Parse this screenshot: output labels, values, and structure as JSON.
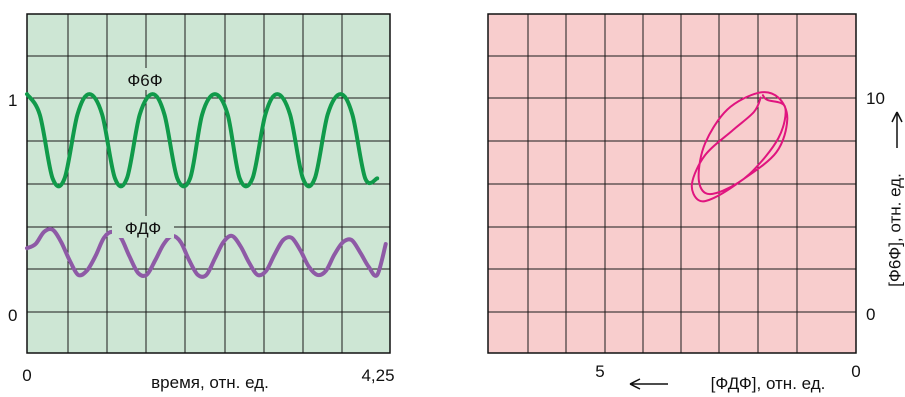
{
  "chart_data": [
    {
      "type": "line",
      "xlabel": "время, отн. ед.",
      "ylabel": "",
      "xlim": [
        0,
        4.25
      ],
      "ylim": [
        -0.3,
        1.35
      ],
      "x_ticks": [
        "0",
        "4,25"
      ],
      "y_ticks": [
        "0",
        "1"
      ],
      "grid": true,
      "background": "#cde6d4",
      "series": [
        {
          "name": "Ф6Ф",
          "color": "#109a4a",
          "x": [
            0.0,
            0.15,
            0.3,
            0.44,
            0.59,
            0.73,
            0.88,
            1.03,
            1.17,
            1.32,
            1.47,
            1.61,
            1.76,
            1.91,
            2.05,
            2.2,
            2.35,
            2.49,
            2.64,
            2.79,
            2.93,
            3.08,
            3.23,
            3.37,
            3.52,
            3.67,
            3.81,
            3.96,
            4.1
          ],
          "values": [
            0.96,
            0.86,
            0.55,
            0.55,
            0.86,
            0.96,
            0.86,
            0.55,
            0.55,
            0.86,
            0.96,
            0.86,
            0.55,
            0.55,
            0.86,
            0.96,
            0.86,
            0.55,
            0.55,
            0.86,
            0.96,
            0.86,
            0.55,
            0.55,
            0.86,
            0.96,
            0.86,
            0.55,
            0.55
          ]
        },
        {
          "name": "ФДФ",
          "color": "#8e5aa6",
          "x": [
            0.0,
            0.1,
            0.2,
            0.3,
            0.4,
            0.5,
            0.6,
            0.7,
            0.8,
            0.9,
            1.0,
            1.1,
            1.2,
            1.3,
            1.4,
            1.5,
            1.6,
            1.7,
            1.8,
            1.9,
            2.0,
            2.1,
            2.2,
            2.3,
            2.4,
            2.5,
            2.6,
            2.7,
            2.8,
            2.9,
            3.0,
            3.1,
            3.2,
            3.3,
            3.4,
            3.5,
            3.6,
            3.7,
            3.8,
            3.9,
            4.0,
            4.1,
            4.2
          ],
          "values": [
            0.21,
            0.23,
            0.29,
            0.3,
            0.24,
            0.15,
            0.08,
            0.1,
            0.17,
            0.26,
            0.29,
            0.26,
            0.17,
            0.09,
            0.08,
            0.15,
            0.23,
            0.27,
            0.24,
            0.15,
            0.08,
            0.08,
            0.16,
            0.24,
            0.27,
            0.22,
            0.14,
            0.08,
            0.1,
            0.18,
            0.25,
            0.26,
            0.2,
            0.12,
            0.08,
            0.1,
            0.18,
            0.24,
            0.25,
            0.19,
            0.12,
            0.08,
            0.23
          ]
        }
      ]
    },
    {
      "type": "line",
      "xlabel": "[ФДФ], отн. ед.",
      "ylabel": "[Ф6Ф], отн. ед.",
      "xlim": [
        8.3,
        0
      ],
      "ylim": [
        -1.0,
        13.2
      ],
      "x_ticks": [
        "5",
        "0"
      ],
      "y_ticks": [
        "0",
        "10"
      ],
      "grid": true,
      "background": "#f8cdcd",
      "series": [
        {
          "name": "",
          "color": "#e0157f",
          "x": [
            2.1,
            2.0,
            1.6,
            1.75,
            2.4,
            3.0,
            3.4,
            3.55,
            3.4,
            2.9,
            2.2,
            1.75,
            1.55,
            1.8,
            2.6,
            3.2,
            3.55,
            3.7,
            3.4,
            2.8,
            2.3,
            2.15
          ],
          "y": [
            9.8,
            9.6,
            9.3,
            8.0,
            6.5,
            5.8,
            5.7,
            6.4,
            7.8,
            9.2,
            9.9,
            9.7,
            8.8,
            7.4,
            6.2,
            5.5,
            5.4,
            6.1,
            7.3,
            8.3,
            9.1,
            9.7
          ]
        }
      ]
    }
  ]
}
